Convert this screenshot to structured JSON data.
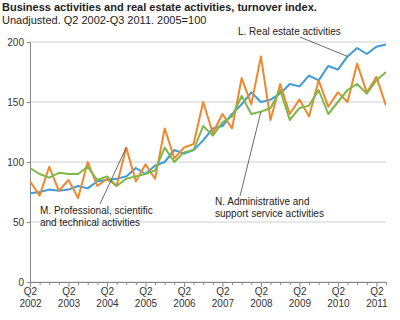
{
  "chart_data": {
    "type": "line",
    "title": "Business activities and real estate activities, turnover index.",
    "subtitle": "Unadjusted. Q2 2002-Q3 2011. 2005=100",
    "categories": [
      "Q2 2002",
      null,
      null,
      null,
      "Q2 2003",
      null,
      null,
      null,
      "Q2 2004",
      null,
      null,
      null,
      "Q2 2005",
      null,
      null,
      null,
      "Q2 2006",
      null,
      null,
      null,
      "Q2 2007",
      null,
      null,
      null,
      "Q2 2008",
      null,
      null,
      null,
      "Q2 2009",
      null,
      null,
      null,
      "Q2 2010",
      null,
      null,
      null,
      "Q2 2011",
      null
    ],
    "series": [
      {
        "name": "L. Real estate activities",
        "color": "#3d9ad6",
        "values": [
          74,
          75,
          77,
          76,
          77,
          80,
          78,
          84,
          85,
          86,
          88,
          95,
          90,
          97,
          100,
          110,
          107,
          110,
          118,
          128,
          130,
          140,
          148,
          158,
          150,
          152,
          157,
          165,
          163,
          172,
          168,
          180,
          177,
          188,
          195,
          190,
          196,
          198
        ]
      },
      {
        "name": "M. Professional, scientific and technical activities",
        "color": "#f0872c",
        "values": [
          84,
          72,
          96,
          76,
          85,
          70,
          100,
          80,
          86,
          80,
          112,
          84,
          98,
          86,
          128,
          103,
          112,
          115,
          150,
          124,
          140,
          128,
          170,
          148,
          188,
          135,
          165,
          140,
          152,
          138,
          168,
          146,
          158,
          150,
          182,
          158,
          171,
          147
        ]
      },
      {
        "name": "N. Administrative and support service activities",
        "color": "#7cb84a",
        "values": [
          95,
          90,
          87,
          91,
          90,
          90,
          96,
          85,
          88,
          80,
          86,
          88,
          90,
          93,
          112,
          100,
          108,
          110,
          130,
          122,
          133,
          138,
          155,
          140,
          142,
          145,
          160,
          135,
          145,
          147,
          160,
          140,
          150,
          160,
          165,
          157,
          168,
          175
        ]
      }
    ],
    "ylim": [
      0,
      200
    ],
    "yticks": [
      0,
      50,
      100,
      150,
      200
    ],
    "grid": true
  }
}
